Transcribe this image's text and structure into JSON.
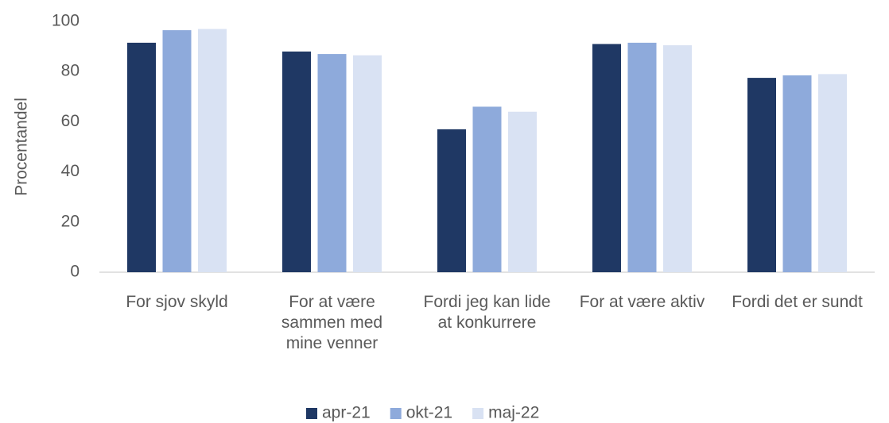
{
  "chart_data": {
    "type": "bar",
    "y_label": "Procentandel",
    "categories": [
      "For sjov skyld",
      "For at være sammen med mine venner",
      "Fordi jeg kan lide at konkurrere",
      "For at være aktiv",
      "Fordi det er sundt"
    ],
    "series": [
      {
        "name": "apr-21",
        "color": "#1f3864",
        "values": [
          91.5,
          88,
          57,
          91,
          77.5
        ]
      },
      {
        "name": "okt-21",
        "color": "#8eaadb",
        "values": [
          96.5,
          87,
          66,
          91.5,
          78.5
        ]
      },
      {
        "name": "maj-22",
        "color": "#d9e2f3",
        "values": [
          97,
          86.5,
          64,
          90.5,
          79
        ]
      }
    ],
    "ylim": [
      0,
      100
    ],
    "yticks": [
      0,
      20,
      40,
      60,
      80,
      100
    ],
    "grid": false,
    "legend": "bottom"
  }
}
